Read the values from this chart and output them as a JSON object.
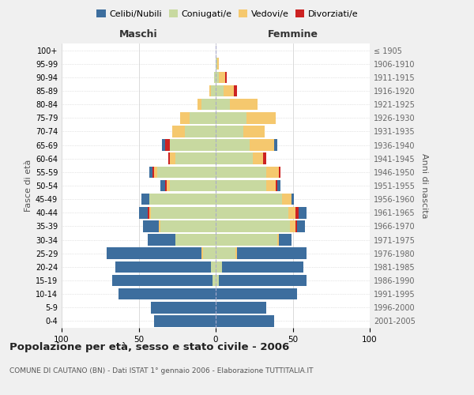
{
  "age_groups": [
    "0-4",
    "5-9",
    "10-14",
    "15-19",
    "20-24",
    "25-29",
    "30-34",
    "35-39",
    "40-44",
    "45-49",
    "50-54",
    "55-59",
    "60-64",
    "65-69",
    "70-74",
    "75-79",
    "80-84",
    "85-89",
    "90-94",
    "95-99",
    "100+"
  ],
  "birth_years": [
    "2001-2005",
    "1996-2000",
    "1991-1995",
    "1986-1990",
    "1981-1985",
    "1976-1980",
    "1971-1975",
    "1966-1970",
    "1961-1965",
    "1956-1960",
    "1951-1955",
    "1946-1950",
    "1941-1945",
    "1936-1940",
    "1931-1935",
    "1926-1930",
    "1921-1925",
    "1916-1920",
    "1911-1915",
    "1906-1910",
    "≤ 1905"
  ],
  "male": {
    "celibi": [
      40,
      42,
      63,
      65,
      62,
      62,
      18,
      10,
      6,
      5,
      3,
      2,
      0,
      2,
      0,
      0,
      0,
      0,
      0,
      0,
      0
    ],
    "coniugati": [
      0,
      0,
      0,
      2,
      3,
      8,
      26,
      36,
      42,
      43,
      30,
      38,
      26,
      30,
      20,
      17,
      9,
      3,
      1,
      0,
      0
    ],
    "vedovi": [
      0,
      0,
      0,
      0,
      0,
      1,
      0,
      1,
      1,
      0,
      2,
      2,
      4,
      0,
      8,
      6,
      3,
      1,
      0,
      0,
      0
    ],
    "divorziati": [
      0,
      0,
      0,
      0,
      0,
      0,
      0,
      0,
      1,
      0,
      1,
      1,
      1,
      3,
      0,
      0,
      0,
      0,
      0,
      0,
      0
    ]
  },
  "female": {
    "nubili": [
      38,
      33,
      53,
      57,
      53,
      45,
      8,
      5,
      5,
      2,
      2,
      0,
      0,
      2,
      0,
      0,
      0,
      0,
      0,
      0,
      0
    ],
    "coniugate": [
      0,
      0,
      0,
      2,
      4,
      13,
      40,
      48,
      47,
      43,
      33,
      33,
      24,
      22,
      18,
      20,
      9,
      5,
      2,
      1,
      0
    ],
    "vedove": [
      0,
      0,
      0,
      0,
      0,
      1,
      1,
      4,
      5,
      6,
      6,
      8,
      7,
      16,
      14,
      19,
      18,
      7,
      4,
      1,
      0
    ],
    "divorziate": [
      0,
      0,
      0,
      0,
      0,
      0,
      0,
      1,
      2,
      0,
      1,
      1,
      2,
      0,
      0,
      0,
      0,
      2,
      1,
      0,
      0
    ]
  },
  "colors": {
    "celibi": "#3d6e9e",
    "coniugati": "#c8d9a0",
    "vedovi": "#f5c86e",
    "divorziati": "#cc2222"
  },
  "xlim": 100,
  "title": "Popolazione per età, sesso e stato civile - 2006",
  "subtitle": "COMUNE DI CAUTANO (BN) - Dati ISTAT 1° gennaio 2006 - Elaborazione TUTTITALIA.IT",
  "ylabel_left": "Fasce di età",
  "ylabel_right": "Anni di nascita",
  "xlabel_left": "Maschi",
  "xlabel_right": "Femmine",
  "background_color": "#f0f0f0",
  "plot_bg": "#ffffff",
  "legend_labels": [
    "Celibi/Nubili",
    "Coniugati/e",
    "Vedovi/e",
    "Divorziati/e"
  ]
}
